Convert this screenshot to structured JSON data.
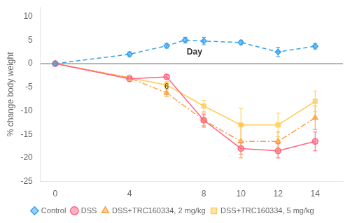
{
  "chart_data": {
    "type": "line",
    "y_label": "% change body weight",
    "series": [
      {
        "name": "Control",
        "x": [
          0,
          4,
          6,
          7,
          8,
          10,
          12,
          14
        ],
        "values": [
          0,
          2.0,
          3.8,
          5.0,
          4.8,
          4.5,
          2.5,
          3.7
        ],
        "errors": [
          0.0,
          0.5,
          0.5,
          0.6,
          0.8,
          0.5,
          1.0,
          0.6
        ],
        "marker": "diamond",
        "line_style": "dashed"
      },
      {
        "name": "DSS",
        "x": [
          0,
          4,
          6,
          8,
          10,
          12,
          14
        ],
        "values": [
          0,
          -3.2,
          -2.8,
          -12.0,
          -18.0,
          -18.5,
          -16.5
        ],
        "errors": [
          0.0,
          0.6,
          0.5,
          1.2,
          1.2,
          1.5,
          2.0
        ],
        "marker": "circle",
        "line_style": "solid"
      },
      {
        "name": "DSS+TRC160334, 2 mg/kg",
        "x": [
          0,
          4,
          6,
          8,
          10,
          12,
          14
        ],
        "values": [
          0,
          -3.0,
          -6.2,
          -12.0,
          -16.5,
          -16.5,
          -11.5
        ],
        "errors": [
          0.0,
          0.5,
          0.8,
          1.5,
          3.5,
          2.0,
          2.5
        ],
        "marker": "triangle",
        "line_style": "dashdot"
      },
      {
        "name": "DSS+TRC160334, 5 mg/kg",
        "x": [
          0,
          4,
          6,
          8,
          10,
          12,
          14
        ],
        "values": [
          0,
          -3.0,
          -4.5,
          -9.0,
          -13.0,
          -13.0,
          -8.0
        ],
        "errors": [
          0.0,
          0.5,
          0.7,
          1.2,
          3.5,
          2.5,
          2.2
        ],
        "marker": "square",
        "line_style": "solid"
      }
    ],
    "xlim": [
      -0.8,
      15.5
    ],
    "xticks": [
      0,
      4,
      {
        "value": 6,
        "label": null
      },
      8,
      10,
      12,
      14
    ],
    "ylim": [
      -25,
      12
    ],
    "yticks": [
      -25,
      -20,
      -15,
      -10,
      -5,
      0,
      5,
      10
    ],
    "reference_line": {
      "y": 0
    },
    "annotations": [
      {
        "text": "Day",
        "x": 7.5,
        "y": 2.5
      },
      {
        "text": "6",
        "x": 6,
        "y": -4.0
      }
    ],
    "grid": false,
    "legend": "bottom"
  }
}
